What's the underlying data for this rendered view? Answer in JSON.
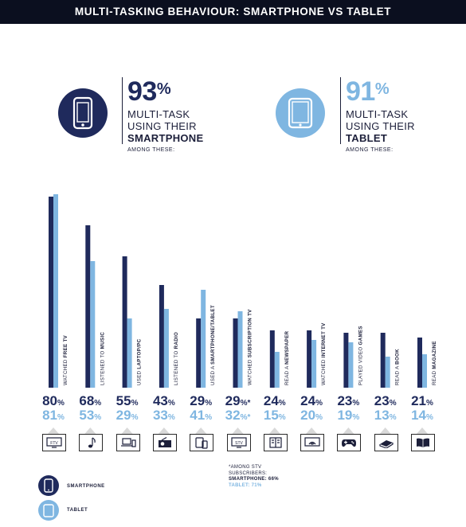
{
  "header": {
    "title": "MULTI-TASKING BEHAVIOUR: SMARTPHONE VS TABLET"
  },
  "smartphone_stat": {
    "pct": "93",
    "line1": "MULTI-TASK",
    "line2": "USING THEIR",
    "line3": "SMARTPHONE",
    "among": "AMONG THESE:",
    "color": "#1f2a5c"
  },
  "tablet_stat": {
    "pct": "91",
    "line1": "MULTI-TASK",
    "line2": "USING THEIR",
    "line3": "TABLET",
    "among": "AMONG THESE:",
    "color": "#7fb6e1"
  },
  "percent_symbol": "%",
  "chart_data": {
    "type": "bar",
    "categories": [
      "WATCHED FREE TV",
      "LISTENED TO MUSIC",
      "USED LAPTOP/PC",
      "LISTENED TO RADIO",
      "USED A SMARTPHONE/TABLET",
      "WATCHED SUBSCRIPTION TV",
      "READ A NEWSPAPER",
      "WATCHED INTERNET TV",
      "PLAYED VIDEO GAMES",
      "READ A BOOK",
      "READ MAGAZINE"
    ],
    "category_parts": [
      [
        "WATCHED ",
        "FREE TV"
      ],
      [
        "LISTENED TO ",
        "MUSIC"
      ],
      [
        "USED ",
        "LAPTOP/PC"
      ],
      [
        "LISTENED TO ",
        "RADIO"
      ],
      [
        "USED A ",
        "SMARTPHONE/TABLET"
      ],
      [
        "WATCHED ",
        "SUBSCRIPTION TV"
      ],
      [
        "READ A ",
        "NEWSPAPER"
      ],
      [
        "WATCHED ",
        "INTERNET TV"
      ],
      [
        "PLAYED VIDEO ",
        "GAMES"
      ],
      [
        "READ A ",
        "BOOK"
      ],
      [
        "READ ",
        "MAGAZINE"
      ]
    ],
    "series": [
      {
        "name": "SMARTPHONE",
        "values": [
          80,
          68,
          55,
          43,
          29,
          29,
          24,
          24,
          23,
          23,
          21
        ],
        "color": "#1f2a5c"
      },
      {
        "name": "TABLET",
        "values": [
          81,
          53,
          29,
          33,
          41,
          32,
          15,
          20,
          19,
          13,
          14
        ],
        "color": "#7fb6e1"
      }
    ],
    "asterisk_index": 5,
    "icons": [
      "tv-icon",
      "music-note-icon",
      "laptop-icon",
      "radio-icon",
      "devices-icon",
      "stv-icon",
      "newspaper-icon",
      "internet-tv-icon",
      "gamepad-icon",
      "book-icon",
      "magazine-icon"
    ],
    "ylim": [
      0,
      85
    ]
  },
  "footnote": {
    "line1": "*AMONG STV",
    "line2": "SUBSCRIBERS:",
    "line3": "SMARTPHONE: 66%",
    "line4": "TABLET: 71%"
  },
  "stv_icon_text": "STV",
  "legend": {
    "smartphone": "SMARTPHONE",
    "tablet": "TABLET"
  }
}
